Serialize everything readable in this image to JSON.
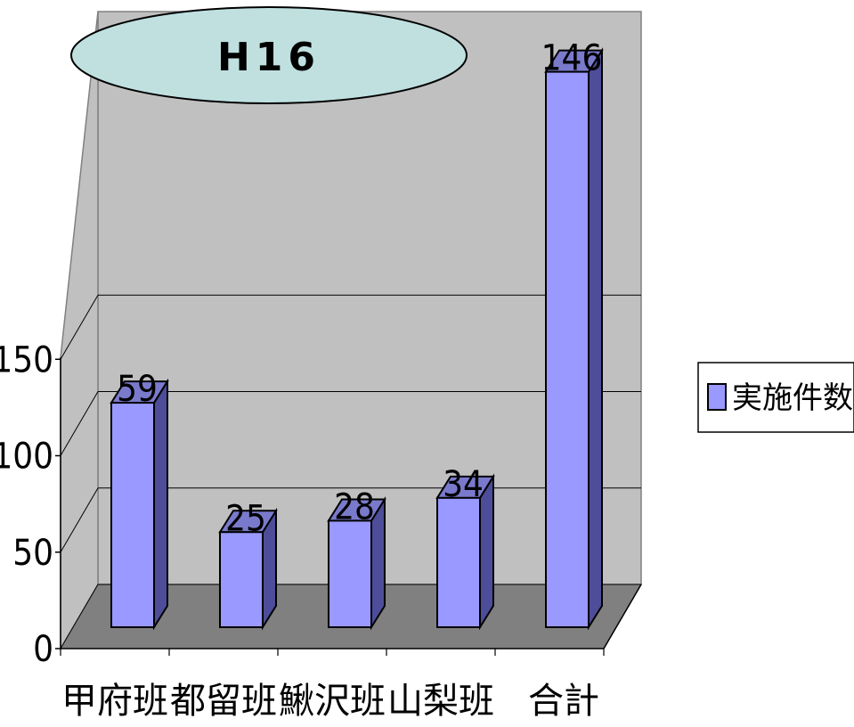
{
  "chart_data": {
    "type": "bar",
    "title": "H16",
    "categories": [
      "甲府班",
      "都留班",
      "鰍沢班",
      "山梨班",
      "合計"
    ],
    "series": [
      {
        "name": "実施件数",
        "values": [
          59,
          25,
          28,
          34,
          146
        ]
      }
    ],
    "ylim": [
      0,
      150
    ],
    "yticks": [
      0,
      50,
      100,
      150
    ],
    "grid": true,
    "legend_position": "right",
    "colors": {
      "bar_front": "#9999ff",
      "bar_side": "#4d4d99",
      "bar_top": "#7a7acc",
      "back_wall": "#c0c0c0",
      "floor": "#808080",
      "title_bubble": "#c0e0e0"
    }
  }
}
